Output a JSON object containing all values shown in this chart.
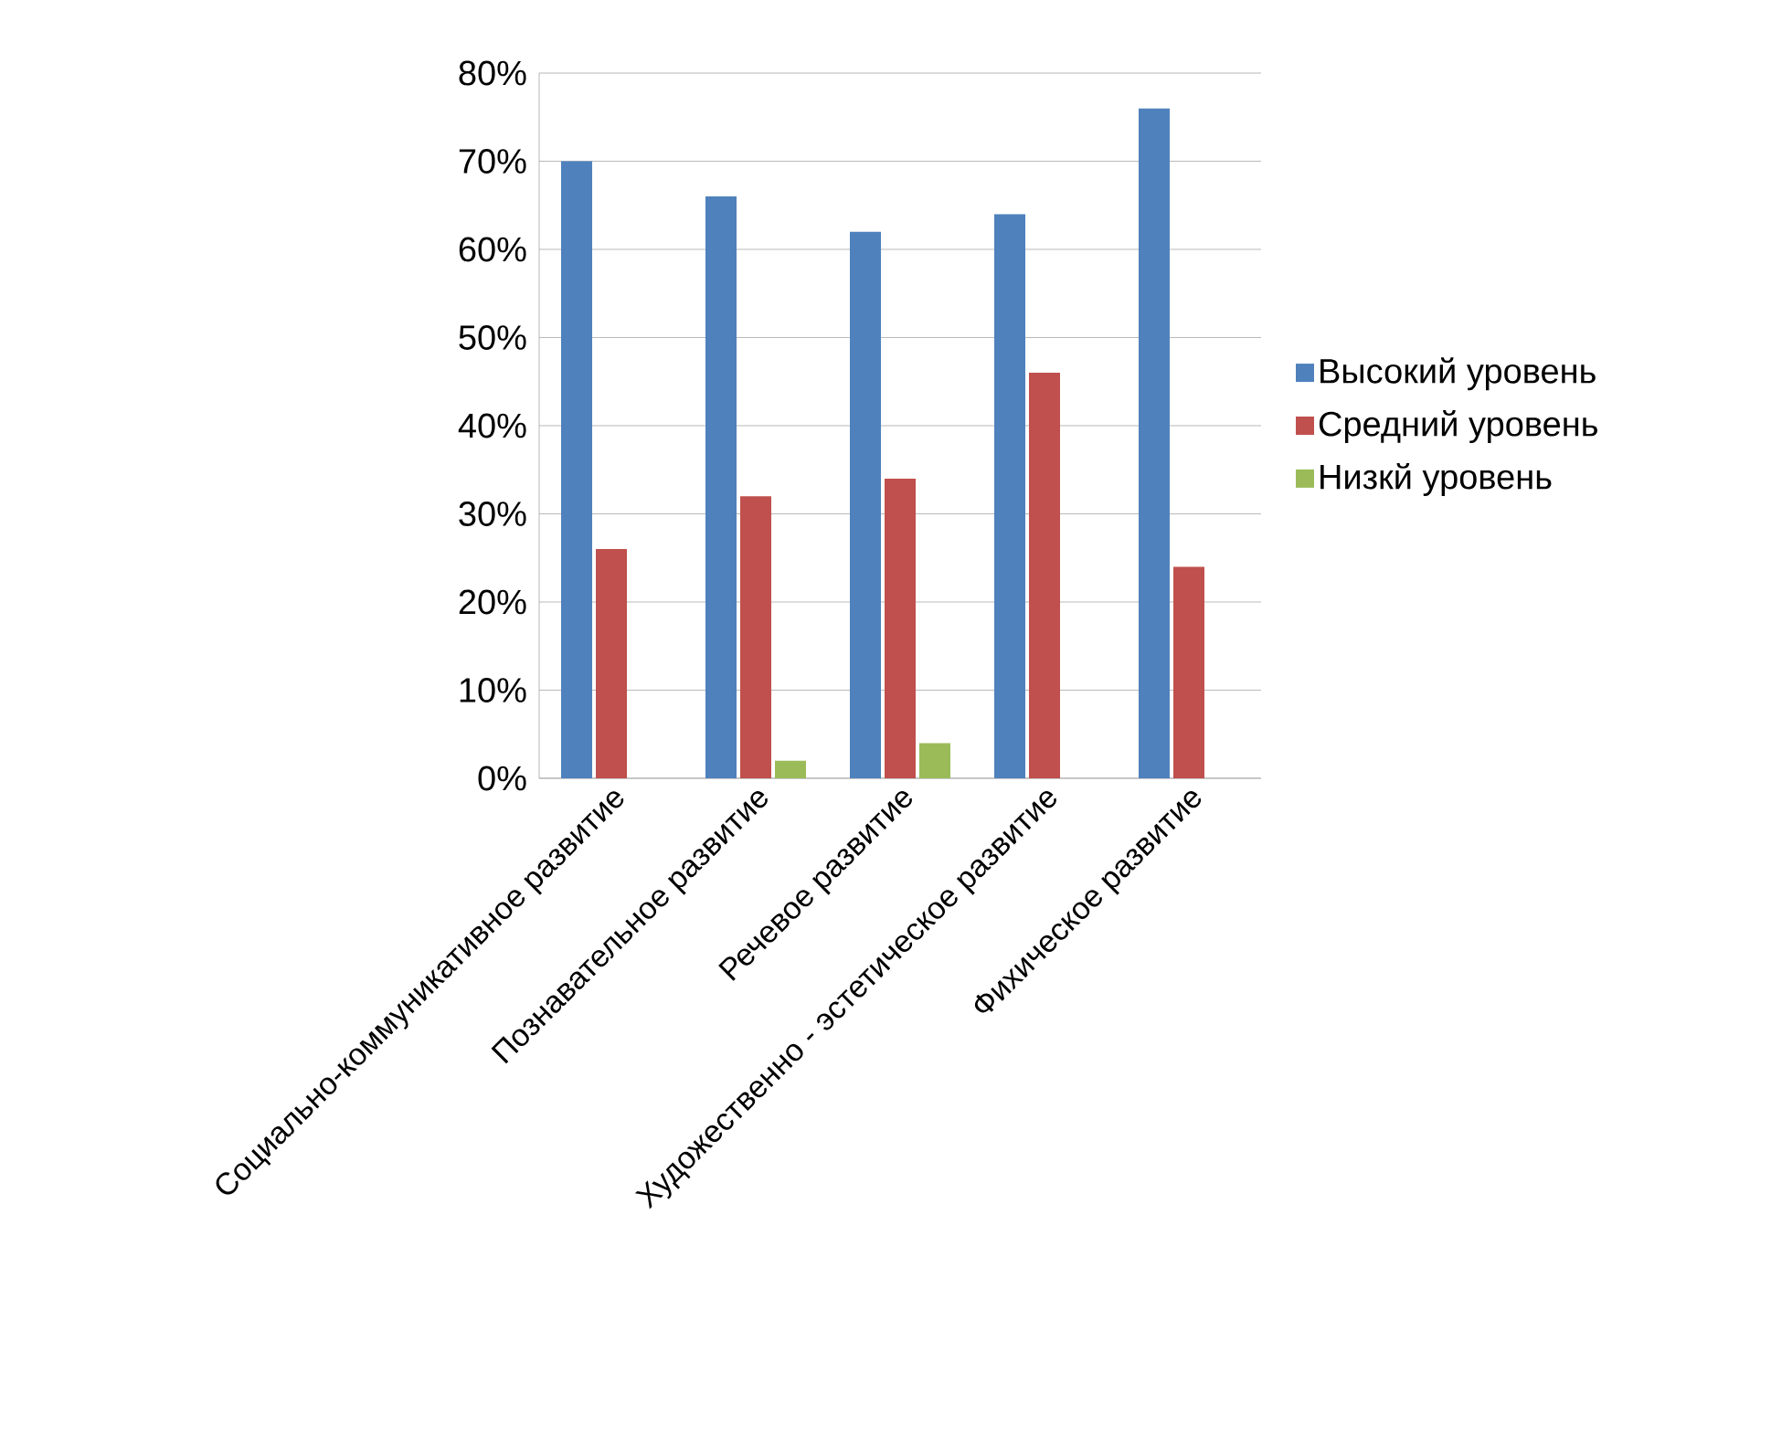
{
  "chart_data": {
    "type": "bar",
    "categories": [
      "Социально-коммуникативное развитие",
      "Познавательное развитие",
      "Речевое развитие",
      "Художественно - эстетическое развитие",
      "Фихическое развитие"
    ],
    "series": [
      {
        "name": "Высокий уровень",
        "color": "#4f81bd",
        "values": [
          70,
          66,
          62,
          64,
          76
        ]
      },
      {
        "name": "Средний уровень",
        "color": "#c0504d",
        "values": [
          26,
          32,
          34,
          46,
          24
        ]
      },
      {
        "name": "Низкй уровень",
        "color": "#9bbb59",
        "values": [
          null,
          2,
          4,
          null,
          null
        ]
      }
    ],
    "ylim": [
      0,
      80
    ],
    "yticks": [
      {
        "value": 0,
        "label": "0%"
      },
      {
        "value": 10,
        "label": "10%"
      },
      {
        "value": 20,
        "label": "20%"
      },
      {
        "value": 30,
        "label": "30%"
      },
      {
        "value": 40,
        "label": "40%"
      },
      {
        "value": 50,
        "label": "50%"
      },
      {
        "value": 60,
        "label": "60%"
      },
      {
        "value": 70,
        "label": "70%"
      },
      {
        "value": 80,
        "label": "80%"
      }
    ],
    "grid": "y",
    "legend": "right"
  }
}
